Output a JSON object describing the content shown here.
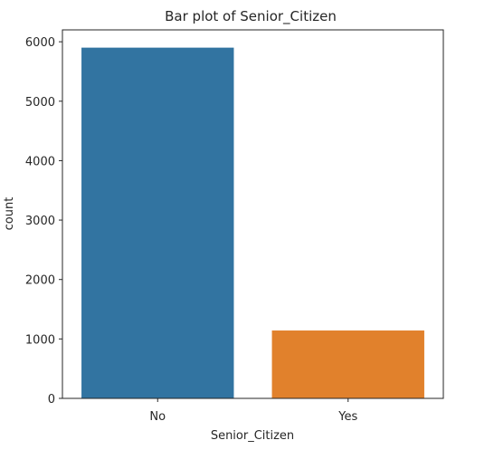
{
  "chart_data": {
    "type": "bar",
    "title": "Bar plot of Senior_Citizen",
    "xlabel": "Senior_Citizen",
    "ylabel": "count",
    "categories": [
      "No",
      "Yes"
    ],
    "values": [
      5901,
      1142
    ],
    "colors": [
      "#3274a1",
      "#e1812c"
    ],
    "ylim": [
      0,
      6200
    ],
    "yticks": [
      0,
      1000,
      2000,
      3000,
      4000,
      5000,
      6000
    ],
    "grid": false
  }
}
